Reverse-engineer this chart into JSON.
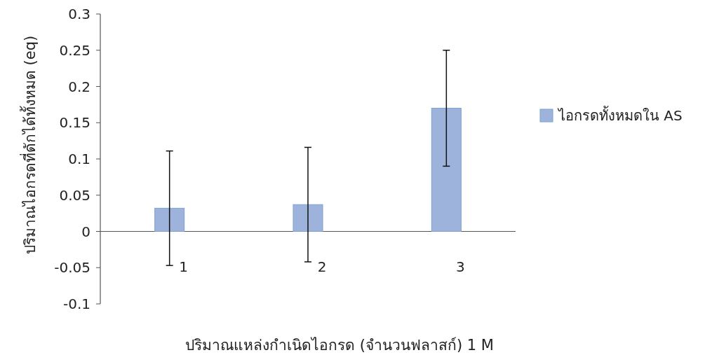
{
  "chart_data": {
    "type": "bar",
    "xlabel": "ปริมาณแหล่งกำเนิดไอกรด (จำนวนฟลาสก์) 1 M",
    "ylabel": "ปริมาณไอกรดที่ดักได้ทั้งหมด (eq)",
    "categories": [
      "1",
      "2",
      "3"
    ],
    "series": [
      {
        "name": "ไอกรดทั้งหมดใน AS",
        "color": "#9db3dc",
        "values": [
          0.032,
          0.037,
          0.17
        ],
        "errors": [
          0.079,
          0.079,
          0.08
        ]
      }
    ],
    "ylim": [
      -0.1,
      0.3
    ],
    "yticks": [
      {
        "value": -0.1,
        "label": "-0.1"
      },
      {
        "value": -0.05,
        "label": "-0.05"
      },
      0,
      0.05,
      0.1,
      0.15,
      0.2,
      0.25,
      0.3
    ],
    "legend": "right",
    "grid": false
  }
}
